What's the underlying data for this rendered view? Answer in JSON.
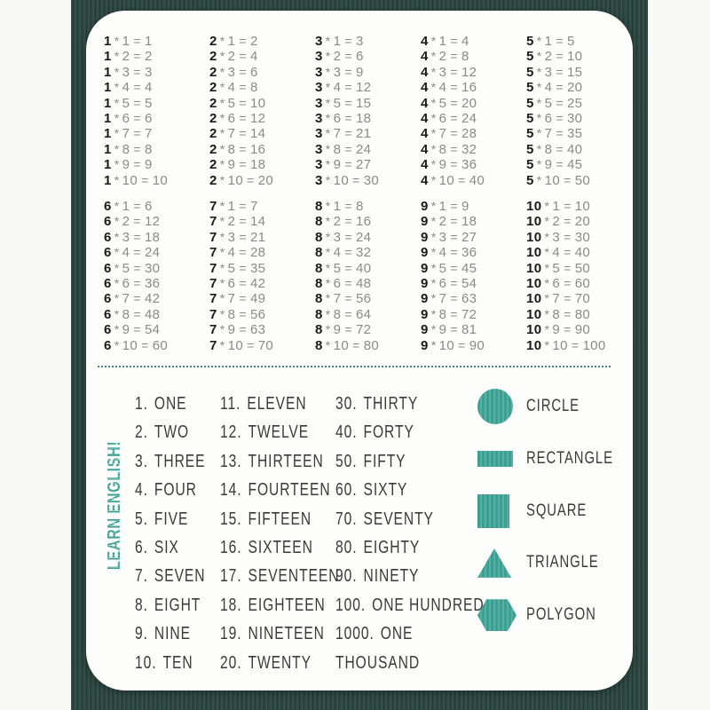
{
  "colors": {
    "accent": "#3fa296",
    "fabric_background": "#2b4741",
    "card_background": "#fdfdfc",
    "table_factor": "#1a1a1a",
    "table_rest": "#8a8a8a",
    "list_text": "#3b3b3b",
    "divider_dots": "#4a867e"
  },
  "learn_english_label": "LEARN ENGLISH!",
  "multiplication": {
    "operator": "*",
    "equals": "=",
    "multipliers": [
      "1",
      "2",
      "3",
      "4",
      "5",
      "6",
      "7",
      "8",
      "9",
      "10"
    ],
    "row1": [
      {
        "factor": "1",
        "products": [
          "1",
          "2",
          "3",
          "4",
          "5",
          "6",
          "7",
          "8",
          "9",
          "10"
        ]
      },
      {
        "factor": "2",
        "products": [
          "2",
          "4",
          "6",
          "8",
          "10",
          "12",
          "14",
          "16",
          "18",
          "20"
        ]
      },
      {
        "factor": "3",
        "products": [
          "3",
          "6",
          "9",
          "12",
          "15",
          "18",
          "21",
          "24",
          "27",
          "30"
        ]
      },
      {
        "factor": "4",
        "products": [
          "4",
          "8",
          "12",
          "16",
          "20",
          "24",
          "28",
          "32",
          "36",
          "40"
        ]
      },
      {
        "factor": "5",
        "products": [
          "5",
          "10",
          "15",
          "20",
          "25",
          "30",
          "35",
          "40",
          "45",
          "50"
        ]
      }
    ],
    "row2": [
      {
        "factor": "6",
        "products": [
          "6",
          "12",
          "18",
          "24",
          "30",
          "36",
          "42",
          "48",
          "54",
          "60"
        ]
      },
      {
        "factor": "7",
        "products": [
          "7",
          "14",
          "21",
          "28",
          "35",
          "42",
          "49",
          "56",
          "63",
          "70"
        ]
      },
      {
        "factor": "8",
        "products": [
          "8",
          "16",
          "24",
          "32",
          "40",
          "48",
          "56",
          "64",
          "72",
          "80"
        ]
      },
      {
        "factor": "9",
        "products": [
          "9",
          "18",
          "27",
          "36",
          "45",
          "54",
          "63",
          "72",
          "81",
          "90"
        ]
      },
      {
        "factor": "10",
        "products": [
          "10",
          "20",
          "30",
          "40",
          "50",
          "60",
          "70",
          "80",
          "90",
          "100"
        ]
      }
    ]
  },
  "numbers": {
    "col1": [
      {
        "n": "1.",
        "w": "ONE"
      },
      {
        "n": "2.",
        "w": "TWO"
      },
      {
        "n": "3.",
        "w": "THREE"
      },
      {
        "n": "4.",
        "w": "FOUR"
      },
      {
        "n": "5.",
        "w": "FIVE"
      },
      {
        "n": "6.",
        "w": "SIX"
      },
      {
        "n": "7.",
        "w": "SEVEN"
      },
      {
        "n": "8.",
        "w": "EIGHT"
      },
      {
        "n": "9.",
        "w": "NINE"
      },
      {
        "n": "10.",
        "w": "TEN"
      }
    ],
    "col2": [
      {
        "n": "11.",
        "w": "ELEVEN"
      },
      {
        "n": "12.",
        "w": "TWELVE"
      },
      {
        "n": "13.",
        "w": "THIRTEEN"
      },
      {
        "n": "14.",
        "w": "FOURTEEN"
      },
      {
        "n": "15.",
        "w": "FIFTEEN"
      },
      {
        "n": "16.",
        "w": "SIXTEEN"
      },
      {
        "n": "17.",
        "w": "SEVENTEEN"
      },
      {
        "n": "18.",
        "w": "EIGHTEEN"
      },
      {
        "n": "19.",
        "w": "NINETEEN"
      },
      {
        "n": "20.",
        "w": "TWENTY"
      }
    ],
    "col3": [
      {
        "n": "30.",
        "w": "THIRTY"
      },
      {
        "n": "40.",
        "w": "FORTY"
      },
      {
        "n": "50.",
        "w": "FIFTY"
      },
      {
        "n": "60.",
        "w": "SIXTY"
      },
      {
        "n": "70.",
        "w": "SEVENTY"
      },
      {
        "n": "80.",
        "w": "EIGHTY"
      },
      {
        "n": "90.",
        "w": "NINETY"
      },
      {
        "n": "100.",
        "w": "ONE HUNDRED"
      },
      {
        "n": "1000.",
        "w": "ONE"
      },
      {
        "n": "",
        "w": "THOUSAND"
      }
    ]
  },
  "shapes": [
    {
      "shape": "circle",
      "label": "CIRCLE"
    },
    {
      "shape": "rectangle",
      "label": "RECTANGLE"
    },
    {
      "shape": "square",
      "label": "SQUARE"
    },
    {
      "shape": "triangle",
      "label": "TRIANGLE"
    },
    {
      "shape": "polygon",
      "label": "POLYGON"
    }
  ]
}
